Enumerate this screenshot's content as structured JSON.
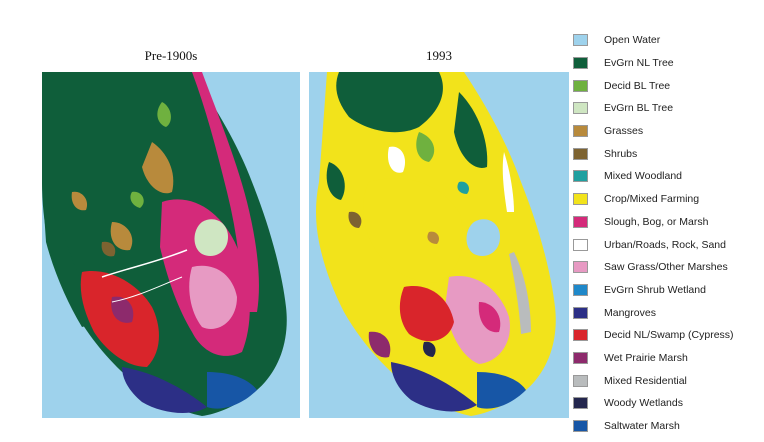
{
  "maps": [
    {
      "title": "Pre-1900s"
    },
    {
      "title": "1993"
    }
  ],
  "legend": [
    {
      "label": "Open Water",
      "color": "#9ed2ec"
    },
    {
      "label": "EvGrn NL Tree",
      "color": "#0f5e3a"
    },
    {
      "label": "Decid BL Tree",
      "color": "#6fb13f"
    },
    {
      "label": "EvGrn BL Tree",
      "color": "#cfe6c2"
    },
    {
      "label": "Grasses",
      "color": "#b88a3c"
    },
    {
      "label": "Shrubs",
      "color": "#7d6331"
    },
    {
      "label": "Mixed Woodland",
      "color": "#20a0a0"
    },
    {
      "label": "Crop/Mixed Farming",
      "color": "#f2e31b"
    },
    {
      "label": "Slough, Bog, or Marsh",
      "color": "#d42a7a"
    },
    {
      "label": "Urban/Roads, Rock, Sand",
      "color": "#ffffff"
    },
    {
      "label": "Saw Grass/Other Marshes",
      "color": "#e79ac3"
    },
    {
      "label": "EvGrn Shrub Wetland",
      "color": "#1f88c9"
    },
    {
      "label": "Mangroves",
      "color": "#2c2f86"
    },
    {
      "label": "Decid NL/Swamp (Cypress)",
      "color": "#d9252b"
    },
    {
      "label": "Wet Prairie Marsh",
      "color": "#8d2a6c"
    },
    {
      "label": "Mixed Residential",
      "color": "#b9bcbd"
    },
    {
      "label": "Woody Wetlands",
      "color": "#23264d"
    },
    {
      "label": "Saltwater Marsh",
      "color": "#1756a6"
    }
  ]
}
